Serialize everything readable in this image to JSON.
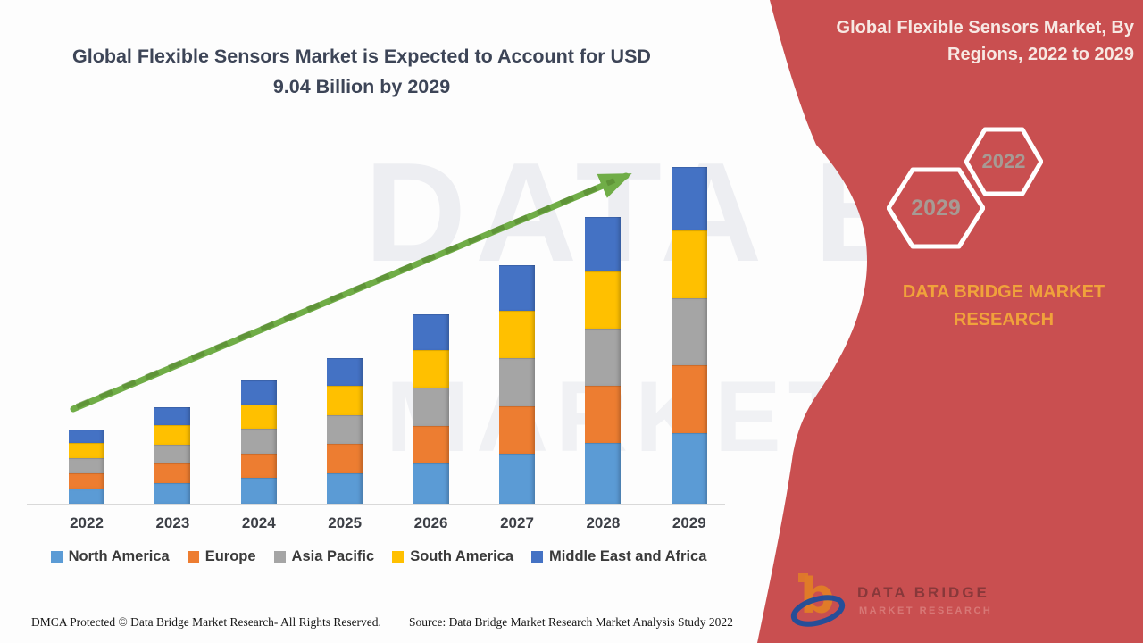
{
  "header": {
    "title_line1": "Global Flexible Sensors Market is Expected to Account for USD",
    "title_line2": "9.04 Billion by 2029",
    "title_color": "#3d4557"
  },
  "banner": {
    "bg_color": "#c94f50",
    "title_line1": "Global Flexible Sensors Market, By",
    "title_line2": "Regions, 2022 to 2029",
    "hexagon_left": "2029",
    "hexagon_right": "2022",
    "brand_line1": "DATA BRIDGE MARKET",
    "brand_line2": "RESEARCH",
    "brand_color": "#f0a23b",
    "logo_word": "DATA BRIDGE",
    "logo_word2": "MARKET RESEARCH"
  },
  "watermark": {
    "line1": "DATA BRID",
    "line2": "MARKET RESE"
  },
  "chart_data": {
    "type": "bar",
    "stacked": true,
    "title": "Global Flexible Sensors Market is Expected to Account for USD 9.04 Billion by 2029",
    "unit": "USD Billion",
    "categories": [
      "2022",
      "2023",
      "2024",
      "2025",
      "2026",
      "2027",
      "2028",
      "2029"
    ],
    "series": [
      {
        "name": "North America",
        "color": "#5b9bd5",
        "values": [
          0.42,
          0.55,
          0.69,
          0.82,
          1.07,
          1.34,
          1.62,
          1.9
        ]
      },
      {
        "name": "Europe",
        "color": "#ed7d31",
        "values": [
          0.4,
          0.52,
          0.66,
          0.78,
          1.02,
          1.28,
          1.54,
          1.81
        ]
      },
      {
        "name": "Asia Pacific",
        "color": "#a5a5a5",
        "values": [
          0.4,
          0.52,
          0.66,
          0.78,
          1.02,
          1.28,
          1.54,
          1.81
        ]
      },
      {
        "name": "South America",
        "color": "#ffc000",
        "values": [
          0.4,
          0.52,
          0.66,
          0.78,
          1.02,
          1.28,
          1.54,
          1.81
        ]
      },
      {
        "name": "Middle East and Africa",
        "color": "#4472c4",
        "values": [
          0.38,
          0.49,
          0.63,
          0.74,
          0.97,
          1.22,
          1.46,
          1.71
        ]
      }
    ],
    "totals": [
      2.0,
      2.6,
      3.3,
      3.9,
      5.1,
      6.4,
      7.7,
      9.04
    ],
    "ylim": [
      0,
      9.5
    ],
    "gridlines": false,
    "legend_position": "bottom",
    "trend_arrow": true,
    "trend_arrow_color": "#70ad47",
    "trend_arrow_dash_color": "#55842f"
  },
  "footer": {
    "left": "DMCA Protected © Data Bridge Market Research- All Rights Reserved.",
    "source": "Source: Data Bridge Market Research Market Analysis Study 2022"
  }
}
